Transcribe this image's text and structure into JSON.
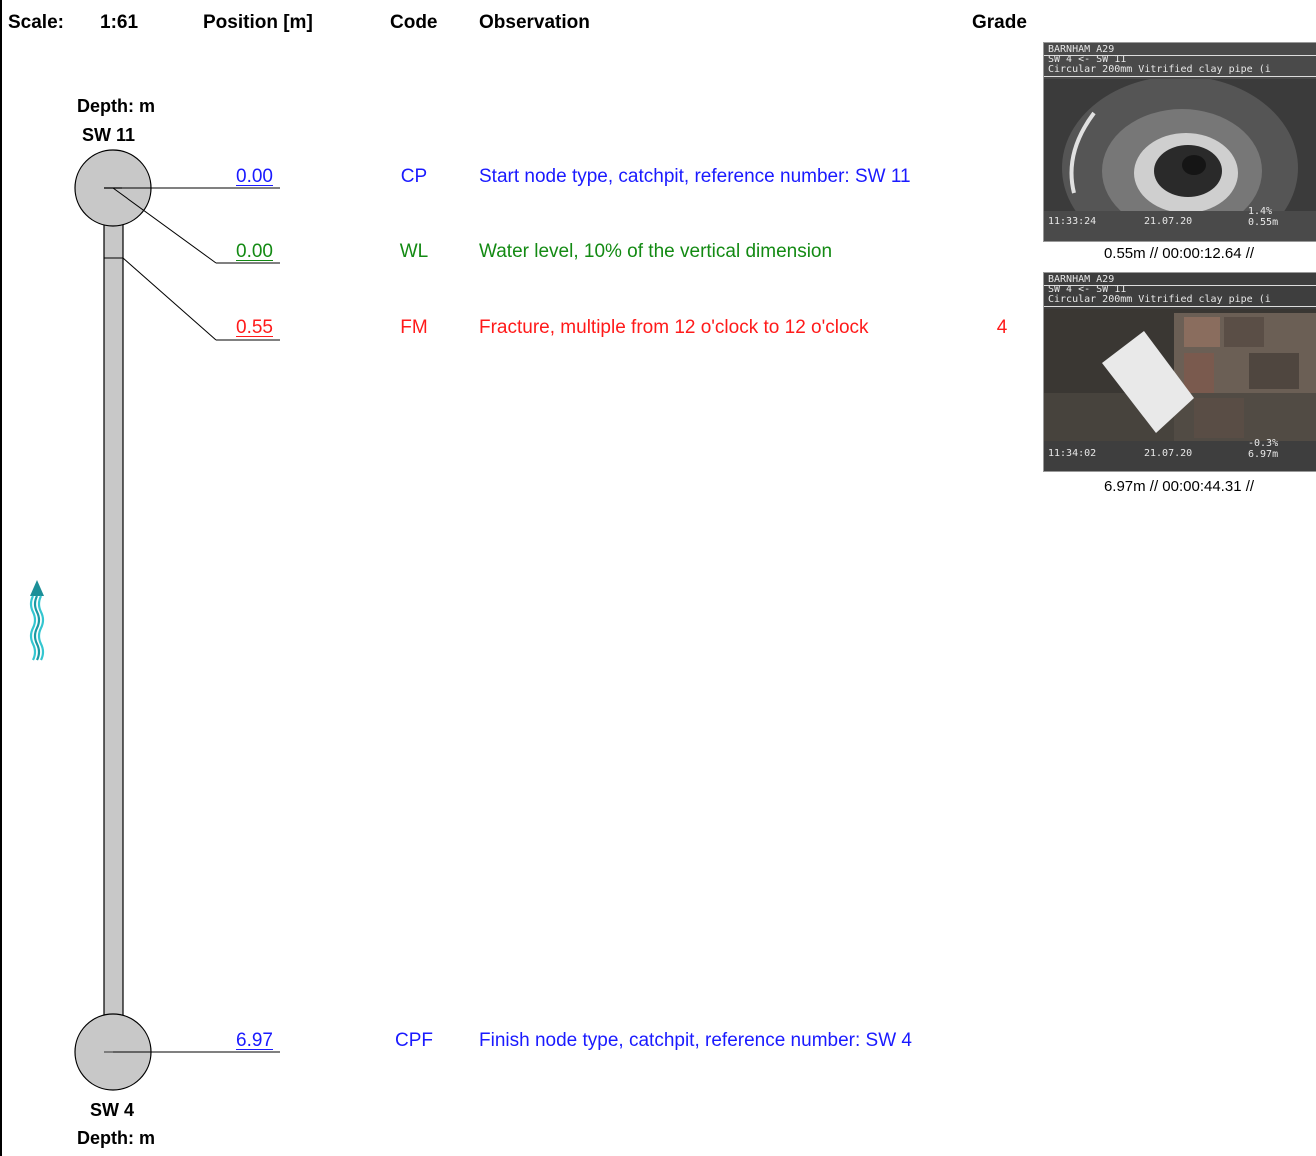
{
  "header": {
    "scale_label": "Scale:",
    "scale_value": "1:61",
    "position_label": "Position [m]",
    "code_label": "Code",
    "observation_label": "Observation",
    "grade_label": "Grade"
  },
  "start_node": {
    "depth_label": "Depth: m",
    "name": "SW 11"
  },
  "finish_node": {
    "depth_label": "Depth: m",
    "name": "SW 4"
  },
  "observations": [
    {
      "position": "0.00",
      "code": "CP",
      "text": "Start node type, catchpit, reference number: SW 11",
      "grade": "",
      "color": "#1a1aff"
    },
    {
      "position": "0.00",
      "code": "WL",
      "text": "Water level, 10% of the vertical dimension",
      "grade": "",
      "color": "#138a13"
    },
    {
      "position": "0.55",
      "code": "FM",
      "text": "Fracture, multiple from 12 o'clock to 12 o'clock",
      "grade": "4",
      "color": "#ff1a1a"
    },
    {
      "position": "6.97",
      "code": "CPF",
      "text": "Finish node type, catchpit, reference number: SW 4",
      "grade": "",
      "color": "#1a1aff"
    }
  ],
  "photos": [
    {
      "osd_title": "BARNHAM A29",
      "osd_route": "SW 4 <- SW 11",
      "osd_pipe": "Circular 200mm Vitrified clay pipe (i",
      "osd_time": "11:33:24",
      "osd_date": "21.07.20",
      "osd_grad": "1.4%",
      "osd_dist": "0.55m",
      "caption": "0.55m // 00:00:12.64 //"
    },
    {
      "osd_title": "BARNHAM A29",
      "osd_route": "SW 4 <- SW 11",
      "osd_pipe": "Circular 200mm Vitrified clay pipe (i",
      "osd_time": "11:34:02",
      "osd_date": "21.07.20",
      "osd_grad": "-0.3%",
      "osd_dist": "6.97m",
      "caption": "6.97m // 00:00:44.31 //"
    }
  ],
  "flow_icon": "flow-direction-arrow-icon"
}
